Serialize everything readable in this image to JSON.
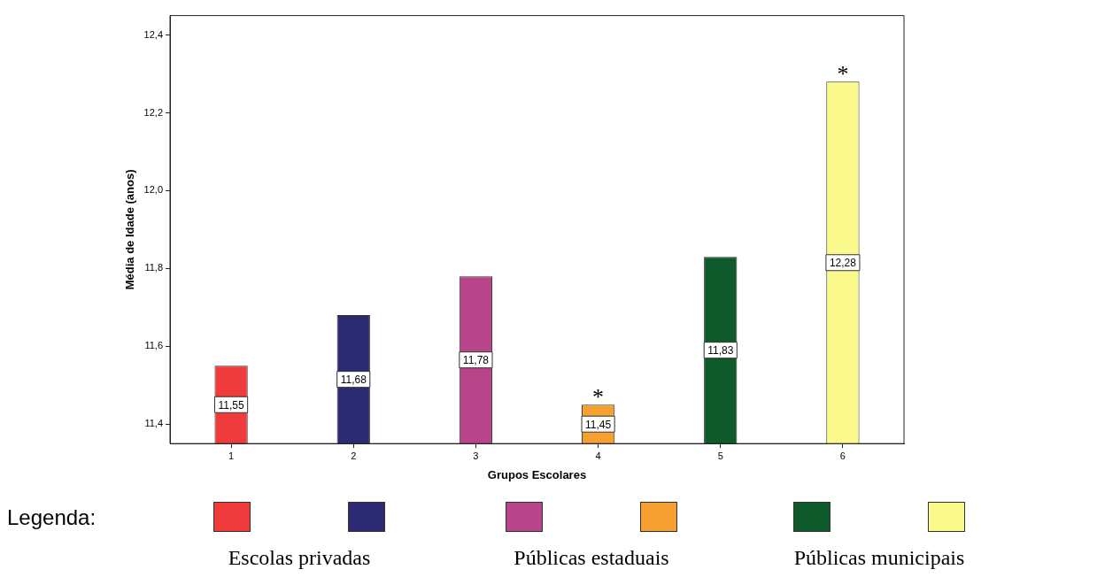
{
  "chart_data": {
    "type": "bar",
    "xlabel": "Grupos Escolares",
    "ylabel": "Média de Idade (anos)",
    "legend_title": "Legenda:",
    "categories": [
      "1",
      "2",
      "3",
      "4",
      "5",
      "6"
    ],
    "series": [
      {
        "name": "Escolas privadas",
        "colors": [
          "#ef3b3b",
          "#2b2a73",
          null,
          null,
          null,
          null
        ],
        "values": [
          11.55,
          11.68,
          null,
          null,
          null,
          null
        ],
        "value_labels": [
          "11,55",
          "11,68",
          null,
          null,
          null,
          null
        ]
      },
      {
        "name": "Públicas estaduais",
        "colors": [
          null,
          null,
          "#b8458a",
          "#f5a030",
          null,
          null
        ],
        "values": [
          null,
          null,
          11.78,
          11.45,
          null,
          null
        ],
        "value_labels": [
          null,
          null,
          "11,78",
          "11,45",
          null,
          null
        ]
      },
      {
        "name": "Públicas municipais",
        "colors": [
          null,
          null,
          null,
          null,
          "#0f5a2a",
          "#fafa8c"
        ],
        "values": [
          null,
          null,
          null,
          null,
          11.83,
          12.28
        ],
        "value_labels": [
          null,
          null,
          null,
          null,
          "11,83",
          "12,28"
        ]
      }
    ],
    "ylim": [
      11.35,
      12.45
    ],
    "yticks": [
      {
        "value": 11.4,
        "label": "11,4"
      },
      {
        "value": 11.6,
        "label": "11,6"
      },
      {
        "value": 11.8,
        "label": "11,8"
      },
      {
        "value": 12.0,
        "label": "12,0"
      },
      {
        "value": 12.2,
        "label": "12,2"
      },
      {
        "value": 12.4,
        "label": "12,4"
      }
    ],
    "grid": false,
    "legend": "bottom",
    "annotations": [
      {
        "text": "*",
        "x": "4",
        "y": 11.45
      },
      {
        "text": "*",
        "x": "6",
        "y": 12.28
      }
    ]
  }
}
